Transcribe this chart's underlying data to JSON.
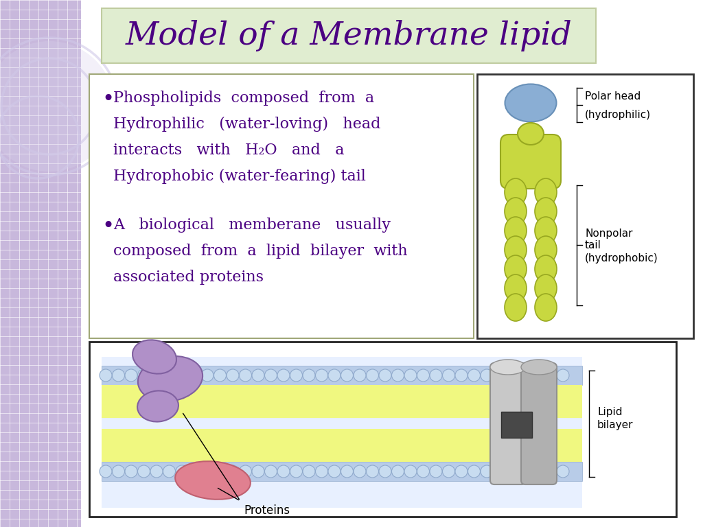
{
  "title": "Model of a Membrane lipid",
  "title_color": "#4B0082",
  "title_bg": "#E0EDD0",
  "title_border": "#C0CCA0",
  "slide_bg": "#F0EEF8",
  "left_bg": "#C8B8DC",
  "grid_color": "#FFFFFF",
  "text_color": "#4B0082",
  "bullet1_line1": "Phospholipids  composed  from  a",
  "bullet1_line2": "Hydrophilic   (water-loving)   head",
  "bullet1_line3": "interacts   with   H₂O   and   a",
  "bullet1_line4": "Hydrophobic (water-fearing) tail",
  "bullet2_line1": "A   biological   memberane   usually",
  "bullet2_line2": "composed  from  a  lipid  bilayer  with",
  "bullet2_line3": "associated proteins",
  "label_polar_head": "Polar head",
  "label_polar_paren": "(hydrophilic)",
  "label_nonpolar_head": "Nonpolar",
  "label_nonpolar_tail": "tail",
  "label_nonpolar_paren": "(hydrophobic)",
  "label_lipid1": "Lipid",
  "label_lipid2": "bilayer",
  "label_proteins": "Proteins",
  "head_color": "#8AAED4",
  "head_edge": "#6890B8",
  "body_color": "#C8D840",
  "body_edge": "#98A820",
  "blue_band_color": "#B8CCE8",
  "blue_band_edge": "#90AACC",
  "yellow_color": "#F0F880",
  "purple_prot_color": "#B090C8",
  "purple_prot_edge": "#8060A0",
  "red_prot_color": "#E08090",
  "red_prot_edge": "#C06070",
  "gray_prot_color": "#B8B8B8",
  "gray_prot_edge": "#909090",
  "dark_color": "#505050"
}
